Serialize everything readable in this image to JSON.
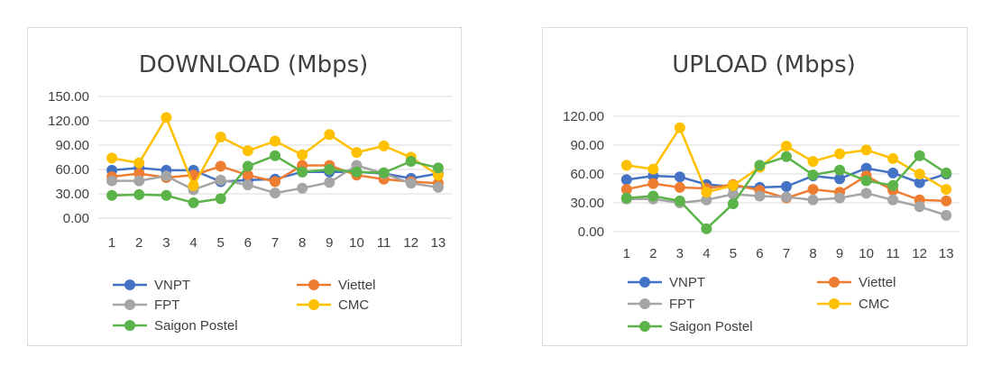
{
  "chart_data": [
    {
      "type": "line",
      "title": "DOWNLOAD (Mbps)",
      "xlabel": "",
      "ylabel": "",
      "ylim": [
        0,
        150
      ],
      "yticks": [
        "0.00",
        "30.00",
        "60.00",
        "90.00",
        "120.00",
        "150.00"
      ],
      "ytick_values": [
        0,
        30,
        60,
        90,
        120,
        150
      ],
      "x": [
        1,
        2,
        3,
        4,
        5,
        6,
        7,
        8,
        9,
        10,
        11,
        12,
        13
      ],
      "grid": true,
      "legend_position": "bottom",
      "series": [
        {
          "name": "VNPT",
          "color": "#4472C4",
          "values": [
            59,
            62,
            59,
            59,
            45,
            47,
            48,
            57,
            57,
            57,
            55,
            49,
            55
          ]
        },
        {
          "name": "Viettel",
          "color": "#ED7D31",
          "values": [
            51,
            55,
            50,
            53,
            64,
            53,
            45,
            65,
            65,
            53,
            48,
            45,
            43
          ]
        },
        {
          "name": "FPT",
          "color": "#A5A5A5",
          "values": [
            46,
            46,
            52,
            35,
            47,
            41,
            31,
            37,
            44,
            65,
            55,
            43,
            38
          ]
        },
        {
          "name": "CMC",
          "color": "#FFC000",
          "values": [
            74,
            68,
            124,
            40,
            100,
            83,
            95,
            78,
            103,
            81,
            89,
            75,
            53
          ]
        },
        {
          "name": "Saigon Postel",
          "color": "#5BB349",
          "values": [
            28,
            29,
            28,
            19,
            24,
            64,
            77,
            57,
            60,
            57,
            56,
            70,
            62
          ]
        }
      ]
    },
    {
      "type": "line",
      "title": "UPLOAD (Mbps)",
      "xlabel": "",
      "ylabel": "",
      "ylim": [
        0,
        120
      ],
      "yticks": [
        "0.00",
        "30.00",
        "60.00",
        "90.00",
        "120.00"
      ],
      "ytick_values": [
        0,
        30,
        60,
        90,
        120
      ],
      "x": [
        1,
        2,
        3,
        4,
        5,
        6,
        7,
        8,
        9,
        10,
        11,
        12,
        13
      ],
      "grid": true,
      "legend_position": "bottom",
      "series": [
        {
          "name": "VNPT",
          "color": "#4472C4",
          "values": [
            54,
            58,
            57,
            49,
            47,
            46,
            47,
            58,
            55,
            66,
            61,
            51,
            60
          ]
        },
        {
          "name": "Viettel",
          "color": "#ED7D31",
          "values": [
            44,
            50,
            46,
            45,
            49,
            43,
            35,
            44,
            41,
            58,
            43,
            33,
            32
          ]
        },
        {
          "name": "FPT",
          "color": "#A5A5A5",
          "values": [
            34,
            34,
            30,
            33,
            39,
            37,
            36,
            33,
            35,
            40,
            33,
            26,
            17
          ]
        },
        {
          "name": "CMC",
          "color": "#FFC000",
          "values": [
            69,
            65,
            108,
            41,
            48,
            67,
            89,
            73,
            81,
            85,
            76,
            60,
            44
          ]
        },
        {
          "name": "Saigon Postel",
          "color": "#5BB349",
          "values": [
            35,
            37,
            32,
            3,
            29,
            69,
            78,
            59,
            64,
            53,
            48,
            79,
            61
          ]
        }
      ]
    }
  ]
}
